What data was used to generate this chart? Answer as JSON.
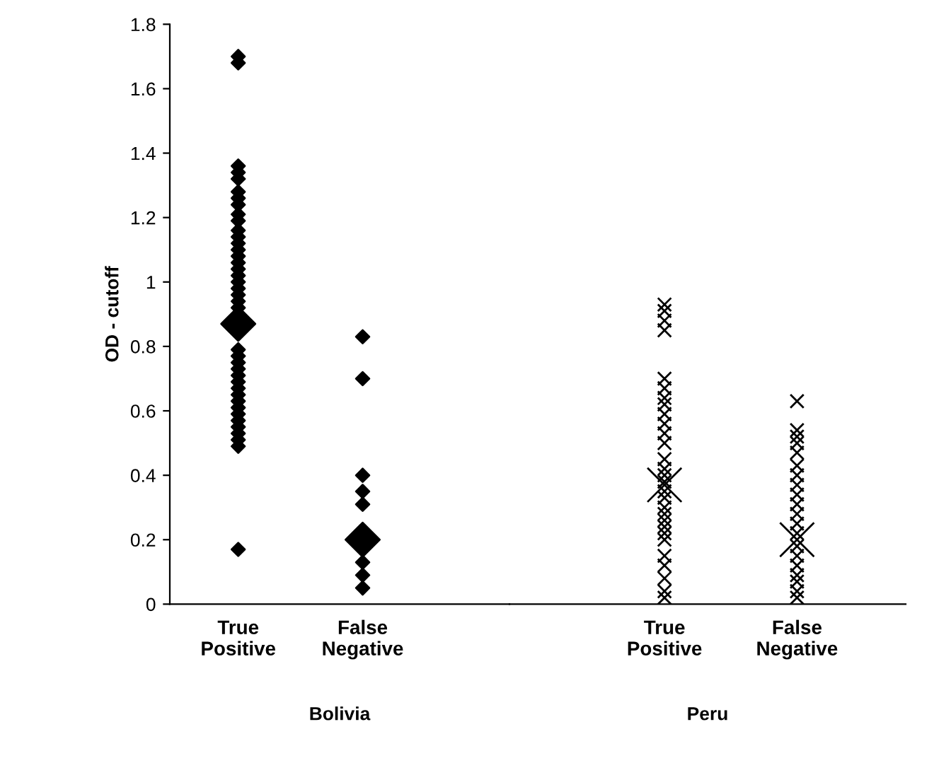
{
  "chart_data": [
    {
      "type": "scatter",
      "ylabel": "OD - cutoff",
      "xlabel": "Bolivia",
      "categories": [
        "True\nPositive",
        "False\nNegative"
      ],
      "ylim": [
        0,
        1.8
      ],
      "yticks": [
        0,
        0.2,
        0.4,
        0.6,
        0.8,
        1,
        1.2,
        1.4,
        1.6,
        1.8
      ],
      "grid": false,
      "series": [
        {
          "color": "#000000",
          "marker": "diamond",
          "x": [
            "True\nPositive",
            "True\nPositive",
            "True\nPositive",
            "True\nPositive",
            "True\nPositive",
            "True\nPositive",
            "True\nPositive",
            "True\nPositive",
            "True\nPositive",
            "True\nPositive",
            "True\nPositive",
            "True\nPositive",
            "True\nPositive",
            "True\nPositive",
            "True\nPositive",
            "True\nPositive",
            "True\nPositive",
            "True\nPositive",
            "True\nPositive",
            "True\nPositive",
            "True\nPositive",
            "True\nPositive",
            "True\nPositive",
            "True\nPositive",
            "True\nPositive",
            "True\nPositive",
            "True\nPositive",
            "True\nPositive",
            "True\nPositive",
            "True\nPositive",
            "True\nPositive",
            "True\nPositive",
            "True\nPositive",
            "True\nPositive",
            "True\nPositive",
            "True\nPositive",
            "True\nPositive",
            "True\nPositive",
            "True\nPositive",
            "True\nPositive",
            "True\nPositive",
            "True\nPositive",
            "True\nPositive",
            "False\nNegative",
            "False\nNegative",
            "False\nNegative",
            "False\nNegative",
            "False\nNegative",
            "False\nNegative",
            "False\nNegative",
            "False\nNegative"
          ],
          "values": [
            null,
            1.7,
            1.68,
            1.36,
            1.34,
            1.32,
            1.28,
            1.26,
            1.24,
            1.21,
            1.19,
            1.16,
            1.14,
            1.12,
            1.1,
            1.08,
            1.06,
            1.04,
            1.02,
            1.0,
            0.98,
            0.96,
            0.94,
            null,
            null,
            0.79,
            0.77,
            0.75,
            0.73,
            0.71,
            0.69,
            0.67,
            0.65,
            0.63,
            0.61,
            0.59,
            0.57,
            0.55,
            0.53,
            0.51,
            0.49,
            0.17,
            0.92,
            0.83,
            0.7,
            0.4,
            0.35,
            0.31,
            0.13,
            0.09,
            0.05
          ],
          "sizes": [
            null,
            0.15,
            0.15,
            0.15,
            0.15,
            0.15,
            0.15,
            0.15,
            0.15,
            0.15,
            0.15,
            0.15,
            0.15,
            0.15,
            0.15,
            0.15,
            0.15,
            0.15,
            0.15,
            0.15,
            0.15,
            0.15,
            0.15,
            null,
            null,
            0.15,
            0.15,
            0.15,
            0.15,
            0.15,
            0.15,
            0.15,
            0.15,
            0.15,
            0.15,
            0.15,
            0.15,
            0.15,
            0.15,
            0.15,
            0.15,
            0.15,
            0.15,
            0.15,
            0.15,
            0.15,
            0.15,
            0.15,
            0.15,
            0.15,
            0.15
          ]
        },
        {
          "color": "#000000",
          "marker": "diamond",
          "x": [
            "True\nPositive",
            "False\nNegative"
          ],
          "values": [
            0.87,
            0.2
          ],
          "sizes": [
            1,
            1
          ]
        }
      ]
    },
    {
      "type": "scatter",
      "xlabel": "Peru",
      "categories": [
        "True\nPositive",
        "False\nNegative"
      ],
      "ylim": [
        0,
        1.8
      ],
      "yticks": [
        0,
        0.2,
        0.4,
        0.6,
        0.8,
        1,
        1.2,
        1.4,
        1.6,
        1.8
      ],
      "grid": false,
      "tick_labels": "x",
      "series": [
        {
          "color": "#000000",
          "marker": "cross",
          "x": [
            "True\nPositive",
            "True\nPositive",
            "True\nPositive",
            "True\nPositive",
            "True\nPositive",
            "True\nPositive",
            "True\nPositive",
            "True\nPositive",
            "True\nPositive",
            "True\nPositive",
            "True\nPositive",
            "True\nPositive",
            "True\nPositive",
            "True\nPositive",
            "True\nPositive",
            "True\nPositive",
            "True\nPositive",
            "True\nPositive",
            "True\nPositive",
            "True\nPositive",
            "True\nPositive",
            "True\nPositive",
            "True\nPositive",
            "True\nPositive",
            "True\nPositive",
            "True\nPositive",
            "True\nPositive",
            "True\nPositive",
            "True\nPositive",
            "False\nNegative",
            "False\nNegative",
            "False\nNegative",
            "False\nNegative",
            "False\nNegative",
            "False\nNegative",
            "False\nNegative",
            "False\nNegative",
            "False\nNegative",
            "False\nNegative",
            "False\nNegative",
            "False\nNegative",
            "False\nNegative",
            "False\nNegative",
            "False\nNegative",
            "False\nNegative",
            "False\nNegative",
            "False\nNegative",
            "False\nNegative",
            "False\nNegative"
          ],
          "values": [
            0.93,
            0.91,
            0.88,
            0.85,
            0.7,
            0.67,
            0.64,
            0.62,
            0.59,
            0.56,
            0.53,
            0.5,
            0.45,
            0.42,
            0.4,
            0.38,
            0.35,
            0.33,
            0.3,
            0.28,
            0.26,
            0.24,
            0.22,
            0.2,
            0.15,
            0.12,
            0.08,
            0.04,
            0.02,
            0.63,
            0.54,
            0.52,
            0.5,
            0.47,
            0.43,
            0.4,
            0.37,
            0.34,
            0.31,
            0.28,
            0.25,
            0.22,
            0.18,
            0.15,
            0.12,
            0.09,
            0.07,
            0.04,
            0.02
          ],
          "sizes": [
            0.15,
            0.15,
            0.15,
            0.15,
            0.15,
            0.15,
            0.15,
            0.15,
            0.15,
            0.15,
            0.15,
            0.15,
            0.15,
            0.15,
            0.15,
            0.15,
            0.15,
            0.15,
            0.15,
            0.15,
            0.15,
            0.15,
            0.15,
            0.15,
            0.15,
            0.15,
            0.15,
            0.15,
            0.15,
            0.15,
            0.15,
            0.15,
            0.15,
            0.15,
            0.15,
            0.15,
            0.15,
            0.15,
            0.15,
            0.15,
            0.15,
            0.15,
            0.15,
            0.15,
            0.15,
            0.15,
            0.15,
            0.15,
            0.15
          ]
        },
        {
          "color": "#000000",
          "marker": "cross",
          "x": [
            "True\nPositive",
            "False\nNegative"
          ],
          "values": [
            0.37,
            0.2
          ],
          "sizes": [
            1,
            1
          ]
        }
      ]
    }
  ]
}
